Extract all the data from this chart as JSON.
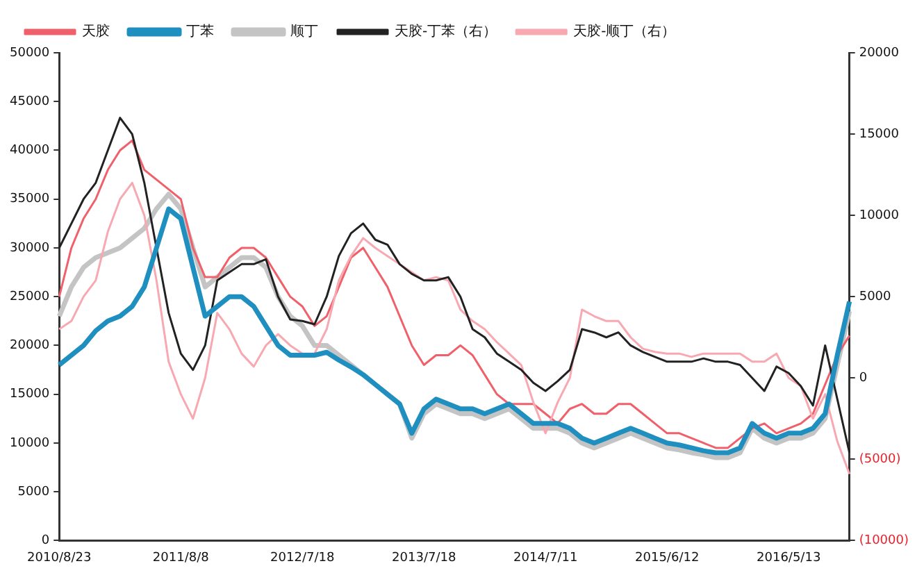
{
  "chart_data": {
    "type": "line",
    "categories": [
      "2010/8/23",
      null,
      null,
      null,
      null,
      null,
      null,
      null,
      null,
      null,
      "2011/8/8",
      null,
      null,
      null,
      null,
      null,
      null,
      null,
      null,
      null,
      "2012/7/18",
      null,
      null,
      null,
      null,
      null,
      null,
      null,
      null,
      null,
      "2013/7/18",
      null,
      null,
      null,
      null,
      null,
      null,
      null,
      null,
      null,
      "2014/7/11",
      null,
      null,
      null,
      null,
      null,
      null,
      null,
      null,
      null,
      "2015/6/12",
      null,
      null,
      null,
      null,
      null,
      null,
      null,
      null,
      null,
      "2016/5/13",
      null,
      null,
      null,
      null,
      null
    ],
    "series": [
      {
        "name": "天胶",
        "color": "#f0606a",
        "values": [
          25000,
          30000,
          33000,
          35000,
          38000,
          40000,
          41000,
          38000,
          37000,
          36000,
          35000,
          30000,
          27000,
          27000,
          29000,
          30000,
          30000,
          29000,
          27000,
          25000,
          24000,
          22000,
          23000,
          26000,
          29000,
          30000,
          28000,
          26000,
          23000,
          20000,
          18000,
          19000,
          19000,
          20000,
          19000,
          17000,
          15000,
          14000,
          14000,
          14000,
          13000,
          12000,
          13500,
          14000,
          13000,
          13000,
          14000,
          14000,
          13000,
          12000,
          11000,
          11000,
          10500,
          10000,
          9500,
          9500,
          10500,
          11500,
          12000,
          11000,
          11500,
          12000,
          13000,
          16000,
          19000,
          21000
        ]
      },
      {
        "name": "丁苯",
        "color": "#1f8fc0",
        "values": [
          18000,
          19000,
          20000,
          21500,
          22500,
          23000,
          24000,
          26000,
          30000,
          34000,
          33000,
          28000,
          23000,
          24000,
          25000,
          25000,
          24000,
          22000,
          20000,
          19000,
          19000,
          19000,
          19300,
          18500,
          17800,
          17000,
          16000,
          15000,
          14000,
          11000,
          13500,
          14500,
          14000,
          13500,
          13500,
          13000,
          13500,
          14000,
          13000,
          12000,
          12000,
          12000,
          11500,
          10500,
          10000,
          10500,
          11000,
          11500,
          11000,
          10500,
          10000,
          9800,
          9500,
          9200,
          9000,
          9000,
          9500,
          12000,
          11000,
          10500,
          11000,
          11000,
          11500,
          13000,
          19000,
          24500
        ]
      },
      {
        "name": "顺丁",
        "color": "#c4c4c4",
        "values": [
          23000,
          26000,
          28000,
          29000,
          29500,
          30000,
          31000,
          32000,
          34000,
          35500,
          34000,
          30000,
          26000,
          27000,
          28000,
          29000,
          29000,
          28000,
          25000,
          23000,
          22000,
          20000,
          20000,
          19000,
          18000,
          17000,
          16000,
          15000,
          14000,
          10500,
          13000,
          14000,
          13500,
          13000,
          13000,
          12500,
          13000,
          13500,
          12500,
          11500,
          11500,
          11500,
          11000,
          10000,
          9500,
          10000,
          10500,
          11000,
          10500,
          10000,
          9500,
          9300,
          9000,
          8800,
          8500,
          8500,
          9000,
          11500,
          10500,
          10000,
          10500,
          10500,
          11000,
          12500,
          18000,
          23500
        ]
      },
      {
        "name": "天胶-丁苯（右）",
        "color": "#222222",
        "axis": "y2",
        "values": [
          8000,
          9500,
          11000,
          12000,
          14000,
          16000,
          15000,
          12000,
          8000,
          4000,
          1500,
          500,
          2000,
          6000,
          6500,
          7000,
          7000,
          7300,
          5000,
          3600,
          3500,
          3300,
          5000,
          7500,
          8900,
          9500,
          8500,
          8200,
          7000,
          6400,
          6000,
          6000,
          6200,
          5000,
          3000,
          2500,
          1500,
          1000,
          500,
          -300,
          -800,
          -200,
          500,
          3000,
          2800,
          2500,
          2800,
          2000,
          1600,
          1300,
          1000,
          1000,
          1000,
          1200,
          1000,
          1000,
          800,
          0,
          -800,
          700,
          300,
          -500,
          -1700,
          2000,
          -1300,
          -4600
        ]
      },
      {
        "name": "天胶-顺丁（右）",
        "color": "#f7a8b0",
        "axis": "y2",
        "values": [
          3000,
          3500,
          5000,
          6000,
          9000,
          11000,
          12000,
          10000,
          6000,
          1000,
          -1000,
          -2500,
          0,
          4000,
          3000,
          1500,
          700,
          2000,
          2700,
          2000,
          1500,
          1500,
          3000,
          6000,
          7500,
          8600,
          8000,
          7500,
          7000,
          6500,
          6000,
          6200,
          6000,
          4200,
          3500,
          3000,
          2200,
          1500,
          800,
          -1500,
          -3400,
          -1500,
          0,
          4200,
          3800,
          3500,
          3500,
          2500,
          1800,
          1600,
          1500,
          1500,
          1300,
          1500,
          1500,
          1500,
          1500,
          1000,
          1000,
          1500,
          0,
          -500,
          -2500,
          -1000,
          -3900,
          -5900
        ]
      }
    ],
    "ylim": [
      0,
      50000
    ],
    "yticks": [
      0,
      5000,
      10000,
      15000,
      20000,
      25000,
      30000,
      35000,
      40000,
      45000,
      50000
    ],
    "y2lim": [
      -10000,
      20000
    ],
    "y2ticks": [
      {
        "value": -10000,
        "label": "(10000)"
      },
      {
        "value": -5000,
        "label": "(5000)"
      },
      0,
      5000,
      10000,
      15000,
      20000
    ],
    "grid": false,
    "legend": "top",
    "marker": "none",
    "line_style": "solid"
  }
}
